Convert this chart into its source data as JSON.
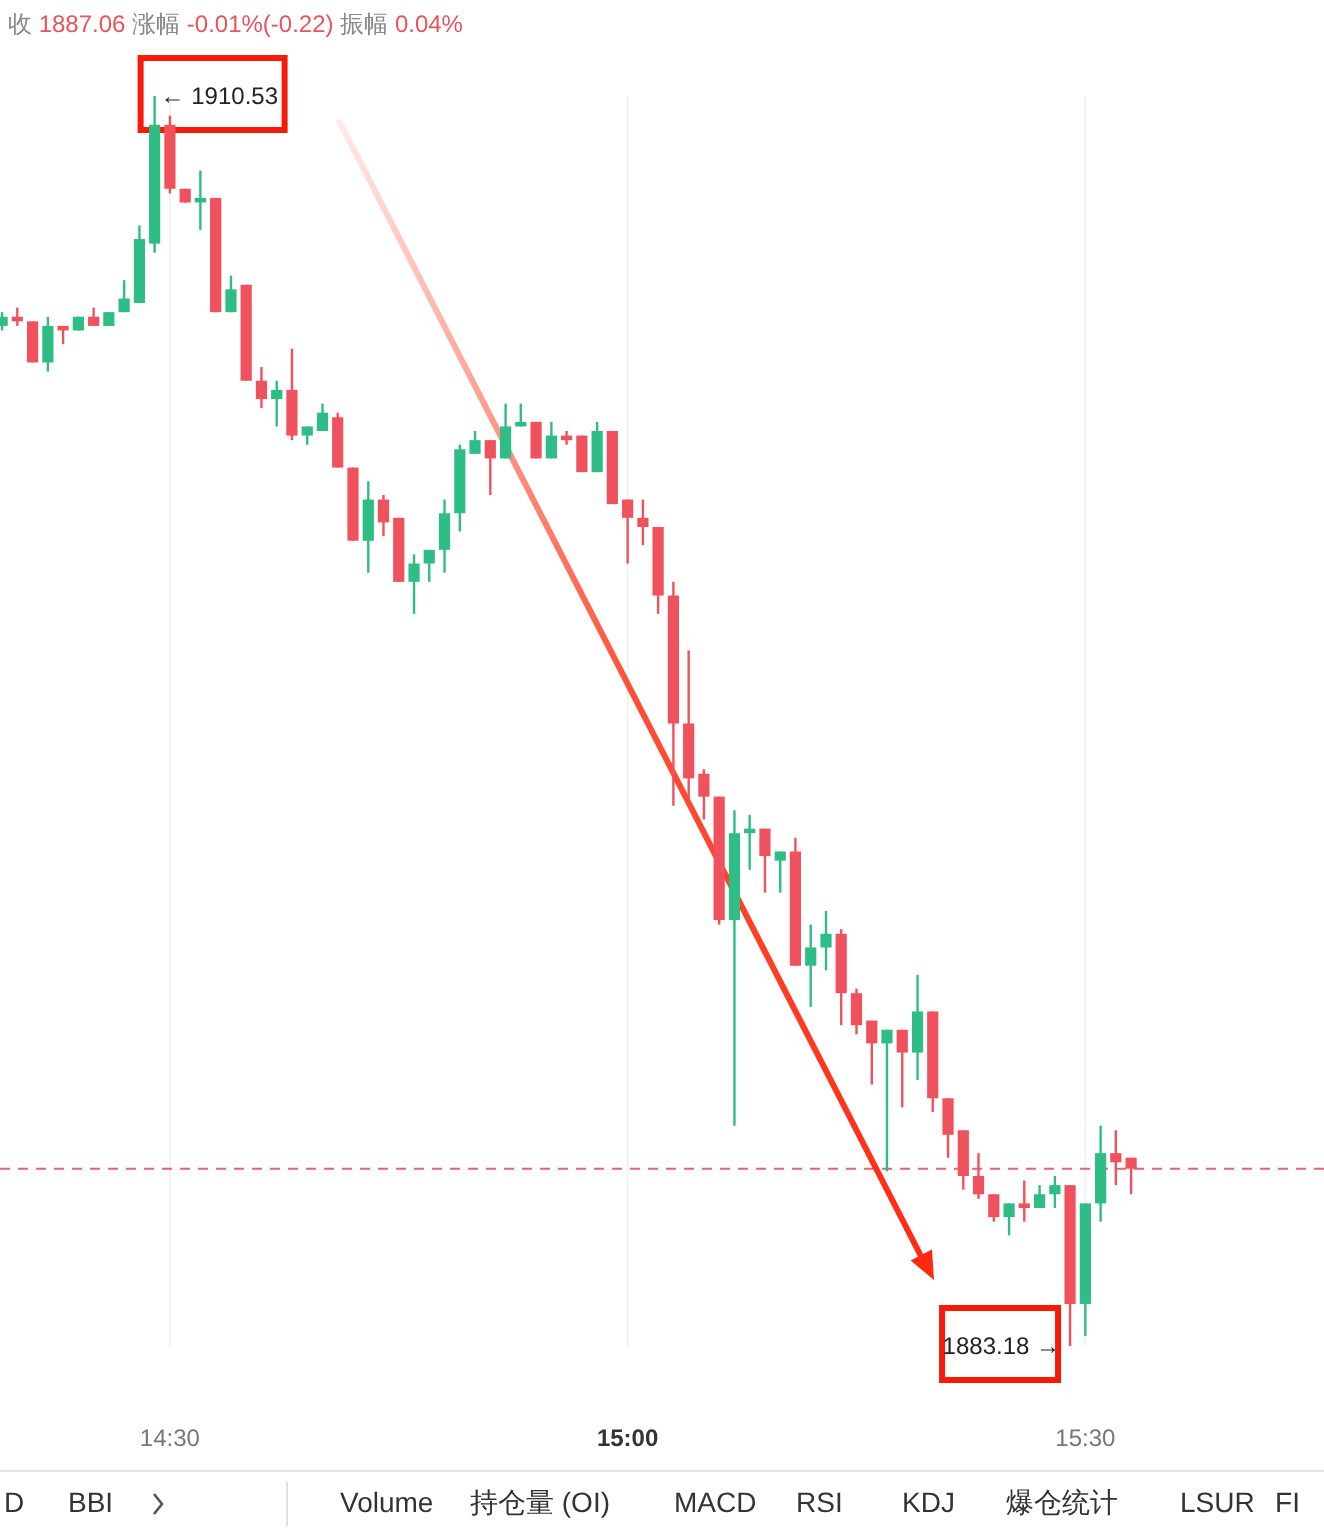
{
  "chart_data": {
    "type": "candlestick",
    "title": "收 1887.06 涨幅 -0.01%(-0.22) 振幅 0.04%",
    "x": [
      14.3167,
      14.3333,
      14.35,
      14.3667,
      14.3833,
      14.4,
      14.4167,
      14.4333,
      14.45,
      14.4667,
      14.4833,
      14.5,
      14.5167,
      14.5333,
      14.55,
      14.5667,
      14.5833,
      14.6,
      14.6167,
      14.6333,
      14.65,
      14.6667,
      14.6833,
      14.7,
      14.7167,
      14.7333,
      14.75,
      14.7667,
      14.7833,
      14.8,
      14.8167,
      14.8333,
      14.85,
      14.8667,
      14.8833,
      14.9,
      14.9167,
      14.9333,
      14.95,
      14.9667,
      14.9833,
      15.0,
      15.0167,
      15.0333,
      15.05,
      15.0667,
      15.0833,
      15.1,
      15.1167,
      15.1333,
      15.15,
      15.1667,
      15.1833,
      15.2,
      15.2167,
      15.2333,
      15.25,
      15.2667,
      15.2833,
      15.3,
      15.3167,
      15.3333,
      15.35,
      15.3667,
      15.3833,
      15.4,
      15.4167,
      15.4333,
      15.45,
      15.4667,
      15.4833,
      15.5,
      15.5167,
      15.5333,
      15.55
    ],
    "ohlc": [
      [
        1905.5,
        1905.8,
        1905.4,
        1905.7
      ],
      [
        1905.7,
        1905.9,
        1905.5,
        1905.6
      ],
      [
        1905.6,
        1905.6,
        1904.7,
        1904.7
      ],
      [
        1904.7,
        1905.7,
        1904.5,
        1905.5
      ],
      [
        1905.5,
        1905.5,
        1905.1,
        1905.4
      ],
      [
        1905.4,
        1905.7,
        1905.4,
        1905.7
      ],
      [
        1905.7,
        1905.9,
        1905.5,
        1905.5
      ],
      [
        1905.5,
        1905.8,
        1905.5,
        1905.8
      ],
      [
        1905.8,
        1906.5,
        1905.8,
        1906.1
      ],
      [
        1906.0,
        1907.7,
        1906.0,
        1907.4
      ],
      [
        1907.3,
        1910.53,
        1907.1,
        1909.9
      ],
      [
        1909.9,
        1910.1,
        1908.4,
        1908.5
      ],
      [
        1908.5,
        1908.5,
        1908.2,
        1908.2
      ],
      [
        1908.2,
        1908.9,
        1907.6,
        1908.3
      ],
      [
        1908.3,
        1908.3,
        1905.8,
        1905.8
      ],
      [
        1905.8,
        1906.6,
        1905.8,
        1906.3
      ],
      [
        1906.4,
        1906.4,
        1904.3,
        1904.3
      ],
      [
        1904.3,
        1904.6,
        1903.7,
        1903.9
      ],
      [
        1903.9,
        1904.3,
        1903.3,
        1904.1
      ],
      [
        1904.1,
        1905.0,
        1903.0,
        1903.1
      ],
      [
        1903.1,
        1903.3,
        1902.9,
        1903.3
      ],
      [
        1903.2,
        1903.8,
        1903.2,
        1903.6
      ],
      [
        1903.5,
        1903.6,
        1902.4,
        1902.4
      ],
      [
        1902.4,
        1902.4,
        1900.8,
        1900.8
      ],
      [
        1900.8,
        1902.1,
        1900.1,
        1901.7
      ],
      [
        1901.7,
        1901.8,
        1900.9,
        1901.2
      ],
      [
        1901.3,
        1901.3,
        1899.9,
        1899.9
      ],
      [
        1899.9,
        1900.5,
        1899.2,
        1900.3
      ],
      [
        1900.3,
        1900.6,
        1899.9,
        1900.6
      ],
      [
        1900.6,
        1901.7,
        1900.1,
        1901.4
      ],
      [
        1901.4,
        1902.9,
        1901.0,
        1902.8
      ],
      [
        1902.7,
        1903.2,
        1902.7,
        1903.0
      ],
      [
        1903.0,
        1903.0,
        1901.8,
        1902.6
      ],
      [
        1902.6,
        1903.8,
        1902.6,
        1903.3
      ],
      [
        1903.3,
        1903.8,
        1903.3,
        1903.4
      ],
      [
        1903.4,
        1903.4,
        1902.6,
        1902.6
      ],
      [
        1902.6,
        1903.4,
        1902.6,
        1903.1
      ],
      [
        1903.1,
        1903.2,
        1902.9,
        1903.0
      ],
      [
        1903.1,
        1903.1,
        1902.3,
        1902.3
      ],
      [
        1902.3,
        1903.4,
        1902.3,
        1903.2
      ],
      [
        1903.2,
        1903.2,
        1901.6,
        1901.6
      ],
      [
        1901.7,
        1901.7,
        1900.3,
        1901.3
      ],
      [
        1901.3,
        1901.7,
        1900.7,
        1901.1
      ],
      [
        1901.1,
        1901.1,
        1899.2,
        1899.6
      ],
      [
        1899.6,
        1899.9,
        1895.0,
        1896.8
      ],
      [
        1896.8,
        1898.4,
        1895.1,
        1895.6
      ],
      [
        1895.7,
        1895.8,
        1894.7,
        1895.2
      ],
      [
        1895.2,
        1895.2,
        1892.4,
        1892.5
      ],
      [
        1892.5,
        1894.9,
        1888.0,
        1894.4
      ],
      [
        1894.4,
        1894.8,
        1893.6,
        1894.5
      ],
      [
        1894.5,
        1894.5,
        1893.1,
        1893.9
      ],
      [
        1893.8,
        1894.0,
        1893.1,
        1894.0
      ],
      [
        1894.0,
        1894.3,
        1891.5,
        1891.5
      ],
      [
        1891.5,
        1892.4,
        1890.6,
        1891.9
      ],
      [
        1891.9,
        1892.7,
        1891.4,
        1892.2
      ],
      [
        1892.2,
        1892.3,
        1890.2,
        1890.9
      ],
      [
        1890.9,
        1891.0,
        1890.0,
        1890.2
      ],
      [
        1890.3,
        1890.3,
        1888.9,
        1889.8
      ],
      [
        1889.8,
        1890.1,
        1887.0,
        1890.1
      ],
      [
        1890.1,
        1890.1,
        1888.4,
        1889.6
      ],
      [
        1889.6,
        1891.3,
        1889.0,
        1890.5
      ],
      [
        1890.5,
        1890.5,
        1888.3,
        1888.6
      ],
      [
        1888.6,
        1888.6,
        1887.3,
        1887.8
      ],
      [
        1887.9,
        1887.9,
        1886.6,
        1886.9
      ],
      [
        1886.9,
        1887.4,
        1886.4,
        1886.5
      ],
      [
        1886.5,
        1886.5,
        1885.9,
        1886.0
      ],
      [
        1886.0,
        1886.3,
        1885.6,
        1886.3
      ],
      [
        1886.3,
        1886.8,
        1885.9,
        1886.2
      ],
      [
        1886.2,
        1886.7,
        1886.2,
        1886.5
      ],
      [
        1886.5,
        1886.9,
        1886.2,
        1886.7
      ],
      [
        1886.7,
        1886.7,
        1883.18,
        1884.1
      ],
      [
        1884.1,
        1886.3,
        1883.4,
        1886.3
      ],
      [
        1886.3,
        1888.0,
        1885.9,
        1887.4
      ],
      [
        1887.4,
        1887.9,
        1886.7,
        1887.2
      ],
      [
        1887.3,
        1887.3,
        1886.5,
        1887.06
      ]
    ],
    "xlim": [
      14.3144,
      15.7607
    ],
    "xticks": [
      {
        "value": 14.5,
        "label": "14:30"
      },
      {
        "value": 15,
        "label": "15:00"
      },
      {
        "value": 15.5,
        "label": "15:30"
      }
    ],
    "grid": "x",
    "tick_labels": "x",
    "ref_lines": [
      {
        "axis": "y",
        "value": 1887.06,
        "color": "#e8636b",
        "line_style": "dashed"
      }
    ],
    "annotations": [
      "← 1910.53",
      "1883.18 →",
      "D",
      "BBI",
      "Volume",
      "持仓量 (OI)",
      "MACD",
      "RSI",
      "KDJ",
      "爆仓统计",
      "LSUR",
      "FI"
    ]
  }
}
